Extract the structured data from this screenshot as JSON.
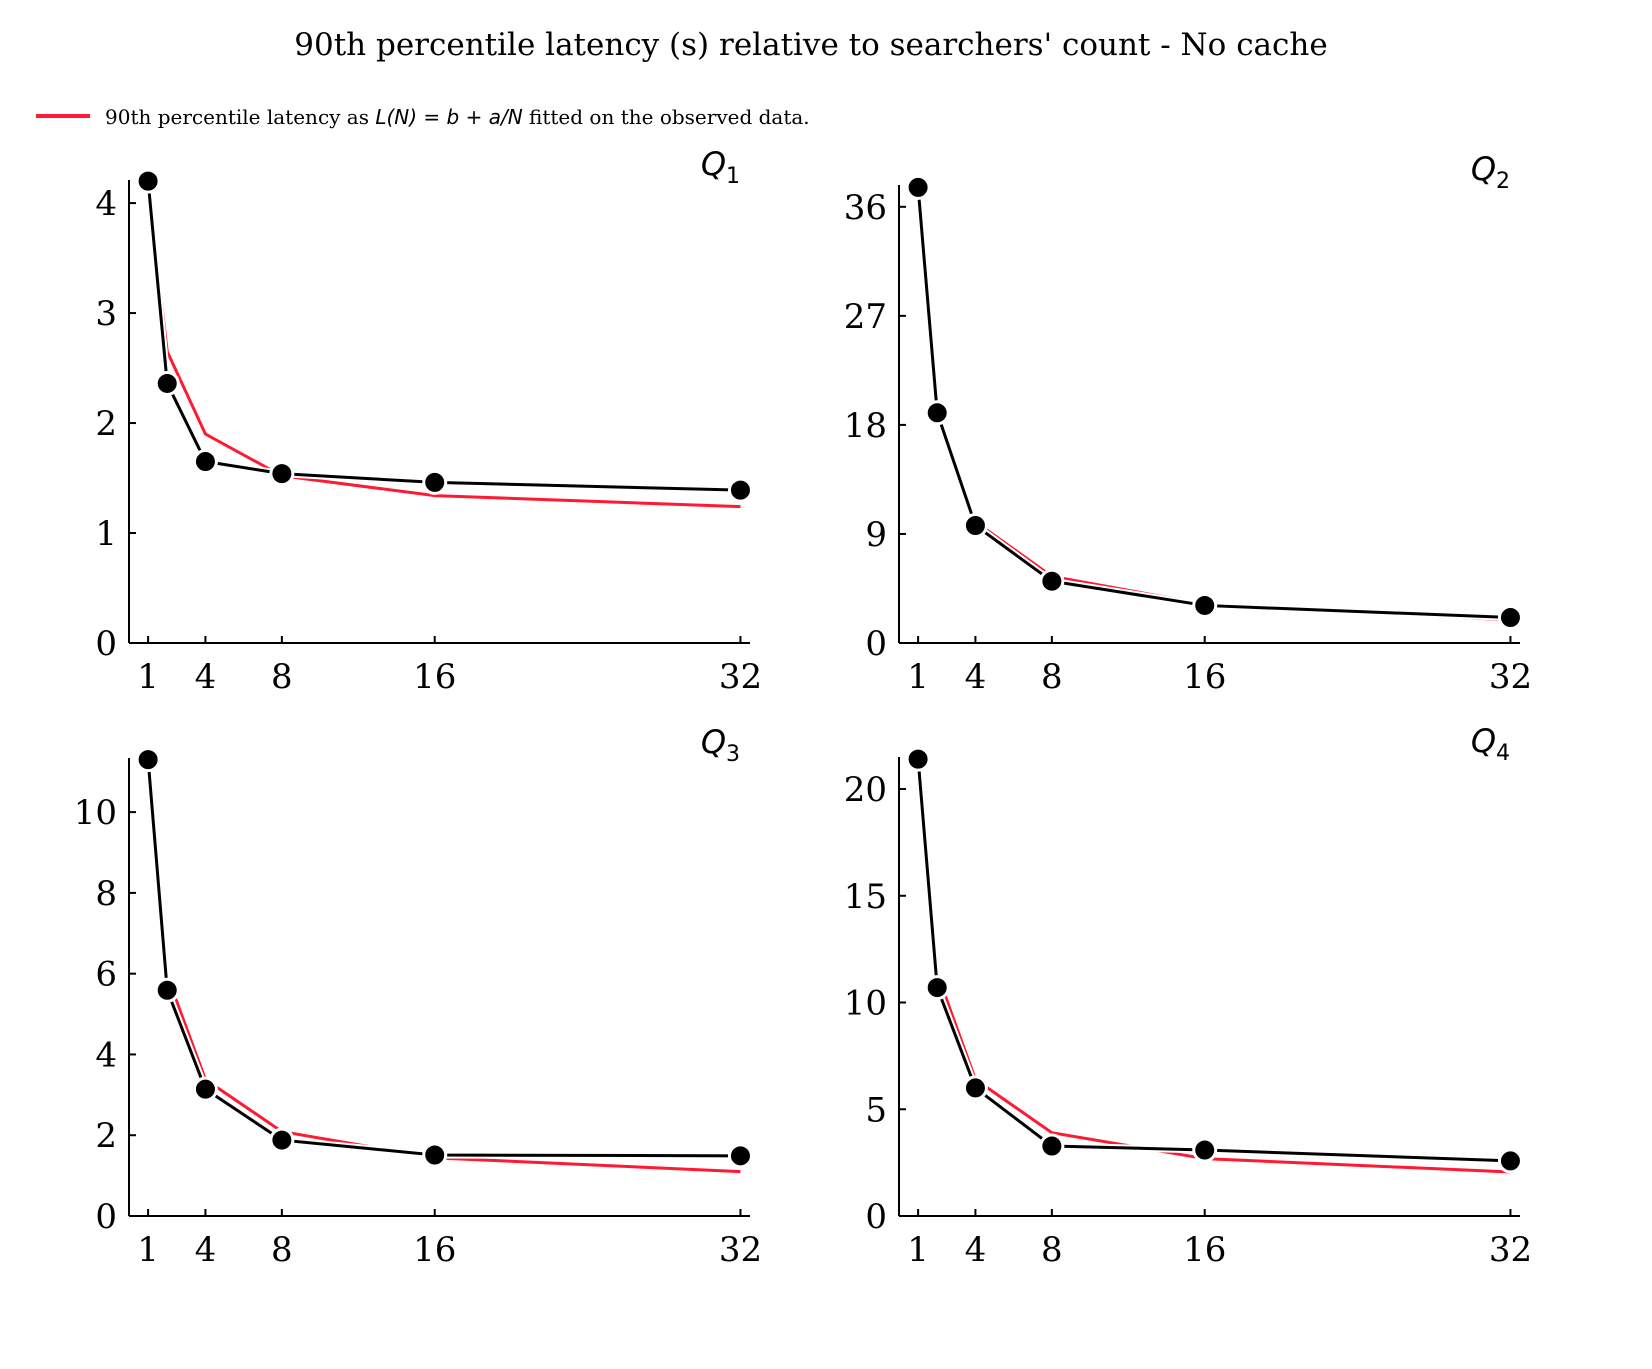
{
  "title": "90th percentile latency (s) relative to searchers' count - No cache",
  "legend": {
    "label_prefix": "90th percentile latency as ",
    "label_formula": "L(N) = b + a/N",
    "label_suffix": " fitted on the observed data.",
    "color": "#ff1a33",
    "placement": "top-left"
  },
  "colors": {
    "observed": "#000000",
    "fit": "#ff1a33",
    "marker_edge": "#ffffff"
  },
  "chart_data": [
    {
      "type": "line",
      "label": "Q",
      "sub": "1",
      "x": [
        1,
        2,
        4,
        8,
        16,
        32
      ],
      "xticks": [
        1,
        4,
        8,
        16,
        32
      ],
      "yticks": [
        0,
        1,
        2,
        3,
        4
      ],
      "xlim": [
        0,
        32.5
      ],
      "ylim": [
        0,
        4.21
      ],
      "series": [
        {
          "role": "observed",
          "values": [
            4.2,
            2.36,
            1.65,
            1.54,
            1.46,
            1.39
          ]
        },
        {
          "role": "fit",
          "values": [
            4.15,
            2.65,
            1.9,
            1.52,
            1.34,
            1.24
          ]
        }
      ]
    },
    {
      "type": "line",
      "label": "Q",
      "sub": "2",
      "x": [
        1,
        2,
        4,
        8,
        16,
        32
      ],
      "xticks": [
        1,
        4,
        8,
        16,
        32
      ],
      "yticks": [
        0,
        9,
        18,
        27,
        36
      ],
      "xlim": [
        0,
        32.5
      ],
      "ylim": [
        0,
        37.8
      ],
      "series": [
        {
          "role": "observed",
          "values": [
            37.6,
            19.0,
            9.7,
            5.1,
            3.1,
            2.1
          ]
        },
        {
          "role": "fit",
          "values": [
            36.8,
            18.9,
            10.0,
            5.5,
            3.2,
            1.9
          ]
        }
      ]
    },
    {
      "type": "line",
      "label": "Q",
      "sub": "3",
      "x": [
        1,
        2,
        4,
        8,
        16,
        32
      ],
      "xticks": [
        1,
        4,
        8,
        16,
        32
      ],
      "yticks": [
        0,
        2,
        4,
        6,
        8,
        10
      ],
      "xlim": [
        0,
        32.5
      ],
      "ylim": [
        0,
        11.34
      ],
      "series": [
        {
          "role": "observed",
          "values": [
            11.3,
            5.59,
            3.14,
            1.88,
            1.51,
            1.49
          ]
        },
        {
          "role": "fit",
          "values": [
            11.1,
            5.95,
            3.38,
            2.09,
            1.44,
            1.1
          ]
        }
      ]
    },
    {
      "type": "line",
      "label": "Q",
      "sub": "4",
      "x": [
        1,
        2,
        4,
        8,
        16,
        32
      ],
      "xticks": [
        1,
        4,
        8,
        16,
        32
      ],
      "yticks": [
        0,
        5,
        10,
        15,
        20
      ],
      "xlim": [
        0,
        32.5
      ],
      "ylim": [
        0,
        21.5
      ],
      "series": [
        {
          "role": "observed",
          "values": [
            21.4,
            10.7,
            6.0,
            3.28,
            3.09,
            2.58
          ]
        },
        {
          "role": "fit",
          "values": [
            21.25,
            11.35,
            6.4,
            3.9,
            2.69,
            2.06
          ]
        }
      ]
    }
  ]
}
